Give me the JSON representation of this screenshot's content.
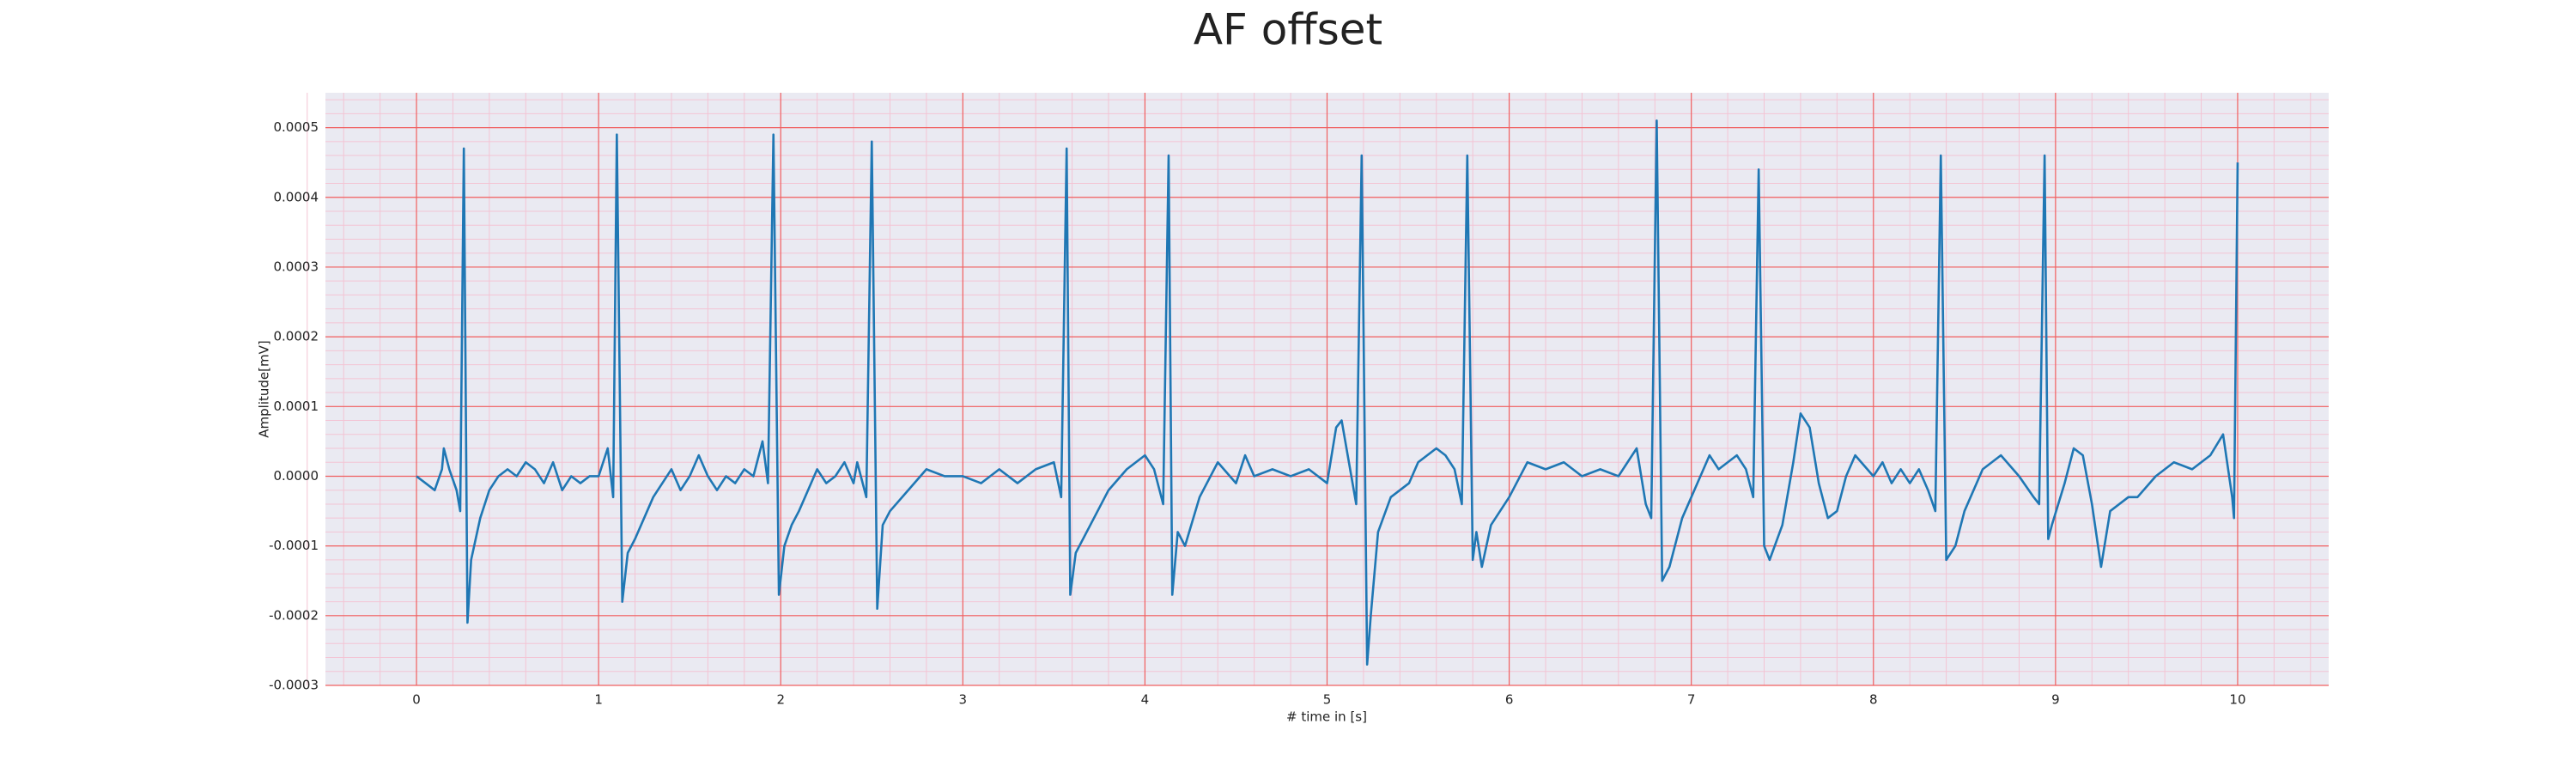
{
  "chart_data": {
    "type": "line",
    "title": "AF offset",
    "xlabel": "# time in [s]",
    "ylabel": "Amplitude[mV]",
    "x": [
      0.0,
      0.05,
      0.1,
      0.14,
      0.15,
      0.18,
      0.22,
      0.24,
      0.26,
      0.28,
      0.3,
      0.35,
      0.4,
      0.45,
      0.5,
      0.55,
      0.6,
      0.65,
      0.7,
      0.75,
      0.8,
      0.85,
      0.9,
      0.95,
      1.0,
      1.05,
      1.08,
      1.1,
      1.13,
      1.16,
      1.2,
      1.3,
      1.35,
      1.4,
      1.45,
      1.5,
      1.55,
      1.6,
      1.65,
      1.7,
      1.75,
      1.8,
      1.85,
      1.9,
      1.93,
      1.96,
      1.99,
      2.02,
      2.06,
      2.1,
      2.15,
      2.2,
      2.25,
      2.3,
      2.35,
      2.4,
      2.42,
      2.47,
      2.5,
      2.53,
      2.56,
      2.6,
      2.7,
      2.8,
      2.9,
      3.0,
      3.1,
      3.2,
      3.3,
      3.4,
      3.5,
      3.54,
      3.57,
      3.59,
      3.62,
      3.7,
      3.8,
      3.9,
      4.0,
      4.05,
      4.1,
      4.13,
      4.15,
      4.18,
      4.22,
      4.3,
      4.4,
      4.5,
      4.55,
      4.6,
      4.7,
      4.8,
      4.9,
      5.0,
      5.05,
      5.08,
      5.12,
      5.16,
      5.19,
      5.22,
      5.24,
      5.28,
      5.35,
      5.45,
      5.5,
      5.6,
      5.65,
      5.7,
      5.74,
      5.77,
      5.8,
      5.82,
      5.85,
      5.9,
      6.0,
      6.1,
      6.2,
      6.3,
      6.4,
      6.5,
      6.6,
      6.7,
      6.75,
      6.78,
      6.81,
      6.84,
      6.88,
      6.95,
      7.05,
      7.1,
      7.15,
      7.25,
      7.3,
      7.34,
      7.37,
      7.4,
      7.43,
      7.5,
      7.56,
      7.6,
      7.65,
      7.7,
      7.75,
      7.8,
      7.85,
      7.9,
      8.0,
      8.05,
      8.1,
      8.15,
      8.2,
      8.25,
      8.3,
      8.34,
      8.37,
      8.4,
      8.45,
      8.5,
      8.6,
      8.7,
      8.8,
      8.88,
      8.91,
      8.94,
      8.96,
      8.98,
      9.05,
      9.1,
      9.15,
      9.2,
      9.25,
      9.3,
      9.4,
      9.45,
      9.55,
      9.65,
      9.75,
      9.85,
      9.92,
      9.97,
      9.98,
      10.0
    ],
    "series": [
      {
        "color": "#1f77b4",
        "values": [
          0,
          -1e-05,
          -2e-05,
          1e-05,
          4e-05,
          1e-05,
          -2e-05,
          -5e-05,
          0.00047,
          -0.00021,
          -0.00012,
          -6e-05,
          -2e-05,
          0,
          1e-05,
          0,
          2e-05,
          1e-05,
          -1e-05,
          2e-05,
          -2e-05,
          0,
          -1e-05,
          0,
          0,
          4e-05,
          -3e-05,
          0.00049,
          -0.00018,
          -0.00011,
          -9e-05,
          -3e-05,
          -1e-05,
          1e-05,
          -2e-05,
          0,
          3e-05,
          0,
          -2e-05,
          0,
          -1e-05,
          1e-05,
          0,
          5e-05,
          -1e-05,
          0.00049,
          -0.00017,
          -0.0001,
          -7e-05,
          -5e-05,
          -2e-05,
          1e-05,
          -1e-05,
          0,
          2e-05,
          -1e-05,
          2e-05,
          -3e-05,
          0.00048,
          -0.00019,
          -7e-05,
          -5e-05,
          -2e-05,
          1e-05,
          0,
          0,
          -1e-05,
          1e-05,
          -1e-05,
          1e-05,
          2e-05,
          -3e-05,
          0.00047,
          -0.00017,
          -0.00011,
          -7e-05,
          -2e-05,
          1e-05,
          3e-05,
          1e-05,
          -4e-05,
          0.00046,
          -0.00017,
          -8e-05,
          -0.0001,
          -3e-05,
          2e-05,
          -1e-05,
          3e-05,
          0,
          1e-05,
          0,
          1e-05,
          -1e-05,
          7e-05,
          8e-05,
          2e-05,
          -4e-05,
          0.00046,
          -0.00027,
          -0.0002,
          -8e-05,
          -3e-05,
          -1e-05,
          2e-05,
          4e-05,
          3e-05,
          1e-05,
          -4e-05,
          0.00046,
          -0.00012,
          -8e-05,
          -0.00013,
          -7e-05,
          -3e-05,
          2e-05,
          1e-05,
          2e-05,
          0,
          1e-05,
          0,
          4e-05,
          -4e-05,
          -6e-05,
          0.00051,
          -0.00015,
          -0.00013,
          -6e-05,
          0,
          3e-05,
          1e-05,
          3e-05,
          1e-05,
          -3e-05,
          0.00044,
          -0.0001,
          -0.00012,
          -7e-05,
          2e-05,
          9e-05,
          7e-05,
          -1e-05,
          -6e-05,
          -5e-05,
          0,
          3e-05,
          0,
          2e-05,
          -1e-05,
          1e-05,
          -1e-05,
          1e-05,
          -2e-05,
          -5e-05,
          0.00046,
          -0.00012,
          -0.0001,
          -5e-05,
          1e-05,
          3e-05,
          0,
          -3e-05,
          -4e-05,
          0.00046,
          -9e-05,
          -7e-05,
          -1e-05,
          4e-05,
          3e-05,
          -4e-05,
          -0.00013,
          -5e-05,
          -3e-05,
          -3e-05,
          0,
          2e-05,
          1e-05,
          3e-05,
          6e-05,
          -3e-05,
          -6e-05,
          0.00045
        ]
      }
    ],
    "xlim": [
      -0.5,
      10.5
    ],
    "xticks": [
      0,
      1,
      2,
      3,
      4,
      5,
      6,
      7,
      8,
      9,
      10
    ],
    "ylim": [
      -0.0003,
      0.00055
    ],
    "yticks": [
      -0.0003,
      -0.0002,
      -0.0001,
      {
        "value": 0,
        "label": "0.0000"
      },
      0.0001,
      0.0002,
      0.0003,
      0.0004,
      0.0005
    ],
    "grid": true,
    "minor_grid": true
  }
}
